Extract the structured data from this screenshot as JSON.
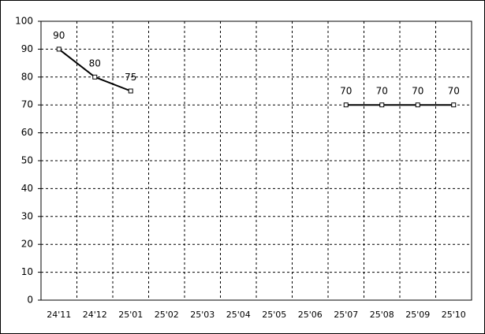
{
  "chart_data": {
    "type": "line",
    "categories": [
      "24'11",
      "24'12",
      "25'01",
      "25'02",
      "25'03",
      "25'04",
      "25'05",
      "25'06",
      "25'07",
      "25'08",
      "25'09",
      "25'10"
    ],
    "series": [
      {
        "color": "#000000",
        "values": [
          90,
          80,
          75,
          null,
          null,
          null,
          null,
          null,
          70,
          70,
          70,
          70
        ]
      }
    ],
    "ylim": [
      0,
      100
    ],
    "yticks": [
      0,
      10,
      20,
      30,
      40,
      50,
      60,
      70,
      80,
      90,
      100
    ],
    "grid": true
  }
}
